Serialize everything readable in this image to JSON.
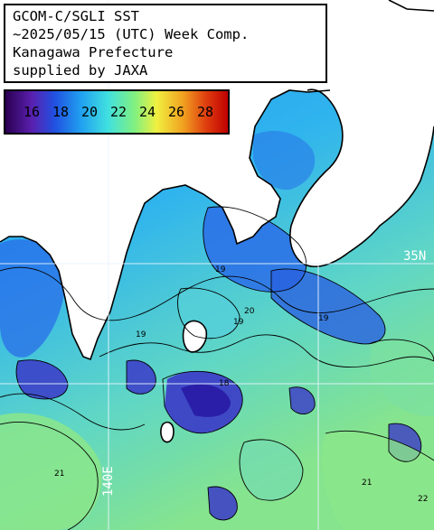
{
  "title": {
    "lines": [
      "GCOM-C/SGLI SST",
      "~2025/05/15 (UTC) Week Comp.",
      "Kanagawa Prefecture",
      "supplied by JAXA"
    ]
  },
  "legend": {
    "labels": [
      "16",
      "18",
      "20",
      "22",
      "24",
      "26",
      "28"
    ],
    "gradient_colors": [
      "#2a0050",
      "#5a20b0",
      "#2050e0",
      "#20a0f0",
      "#40e0e0",
      "#80f080",
      "#f0f040",
      "#f0a020",
      "#e04010",
      "#c00000"
    ]
  },
  "grid": {
    "lat_label": "35N",
    "lon_label": "140E"
  },
  "contours": {
    "labels": [
      "19",
      "19",
      "19",
      "19",
      "20",
      "18",
      "21",
      "21",
      "22"
    ]
  },
  "colors": {
    "land": "#ffffff",
    "sea_cool": "#2a6de8",
    "sea_mid": "#23a8f0",
    "sea_warm": "#5fd7c8",
    "sea_warmest": "#8be68a",
    "contour": "#000000",
    "grid": "#e8f4ff"
  }
}
